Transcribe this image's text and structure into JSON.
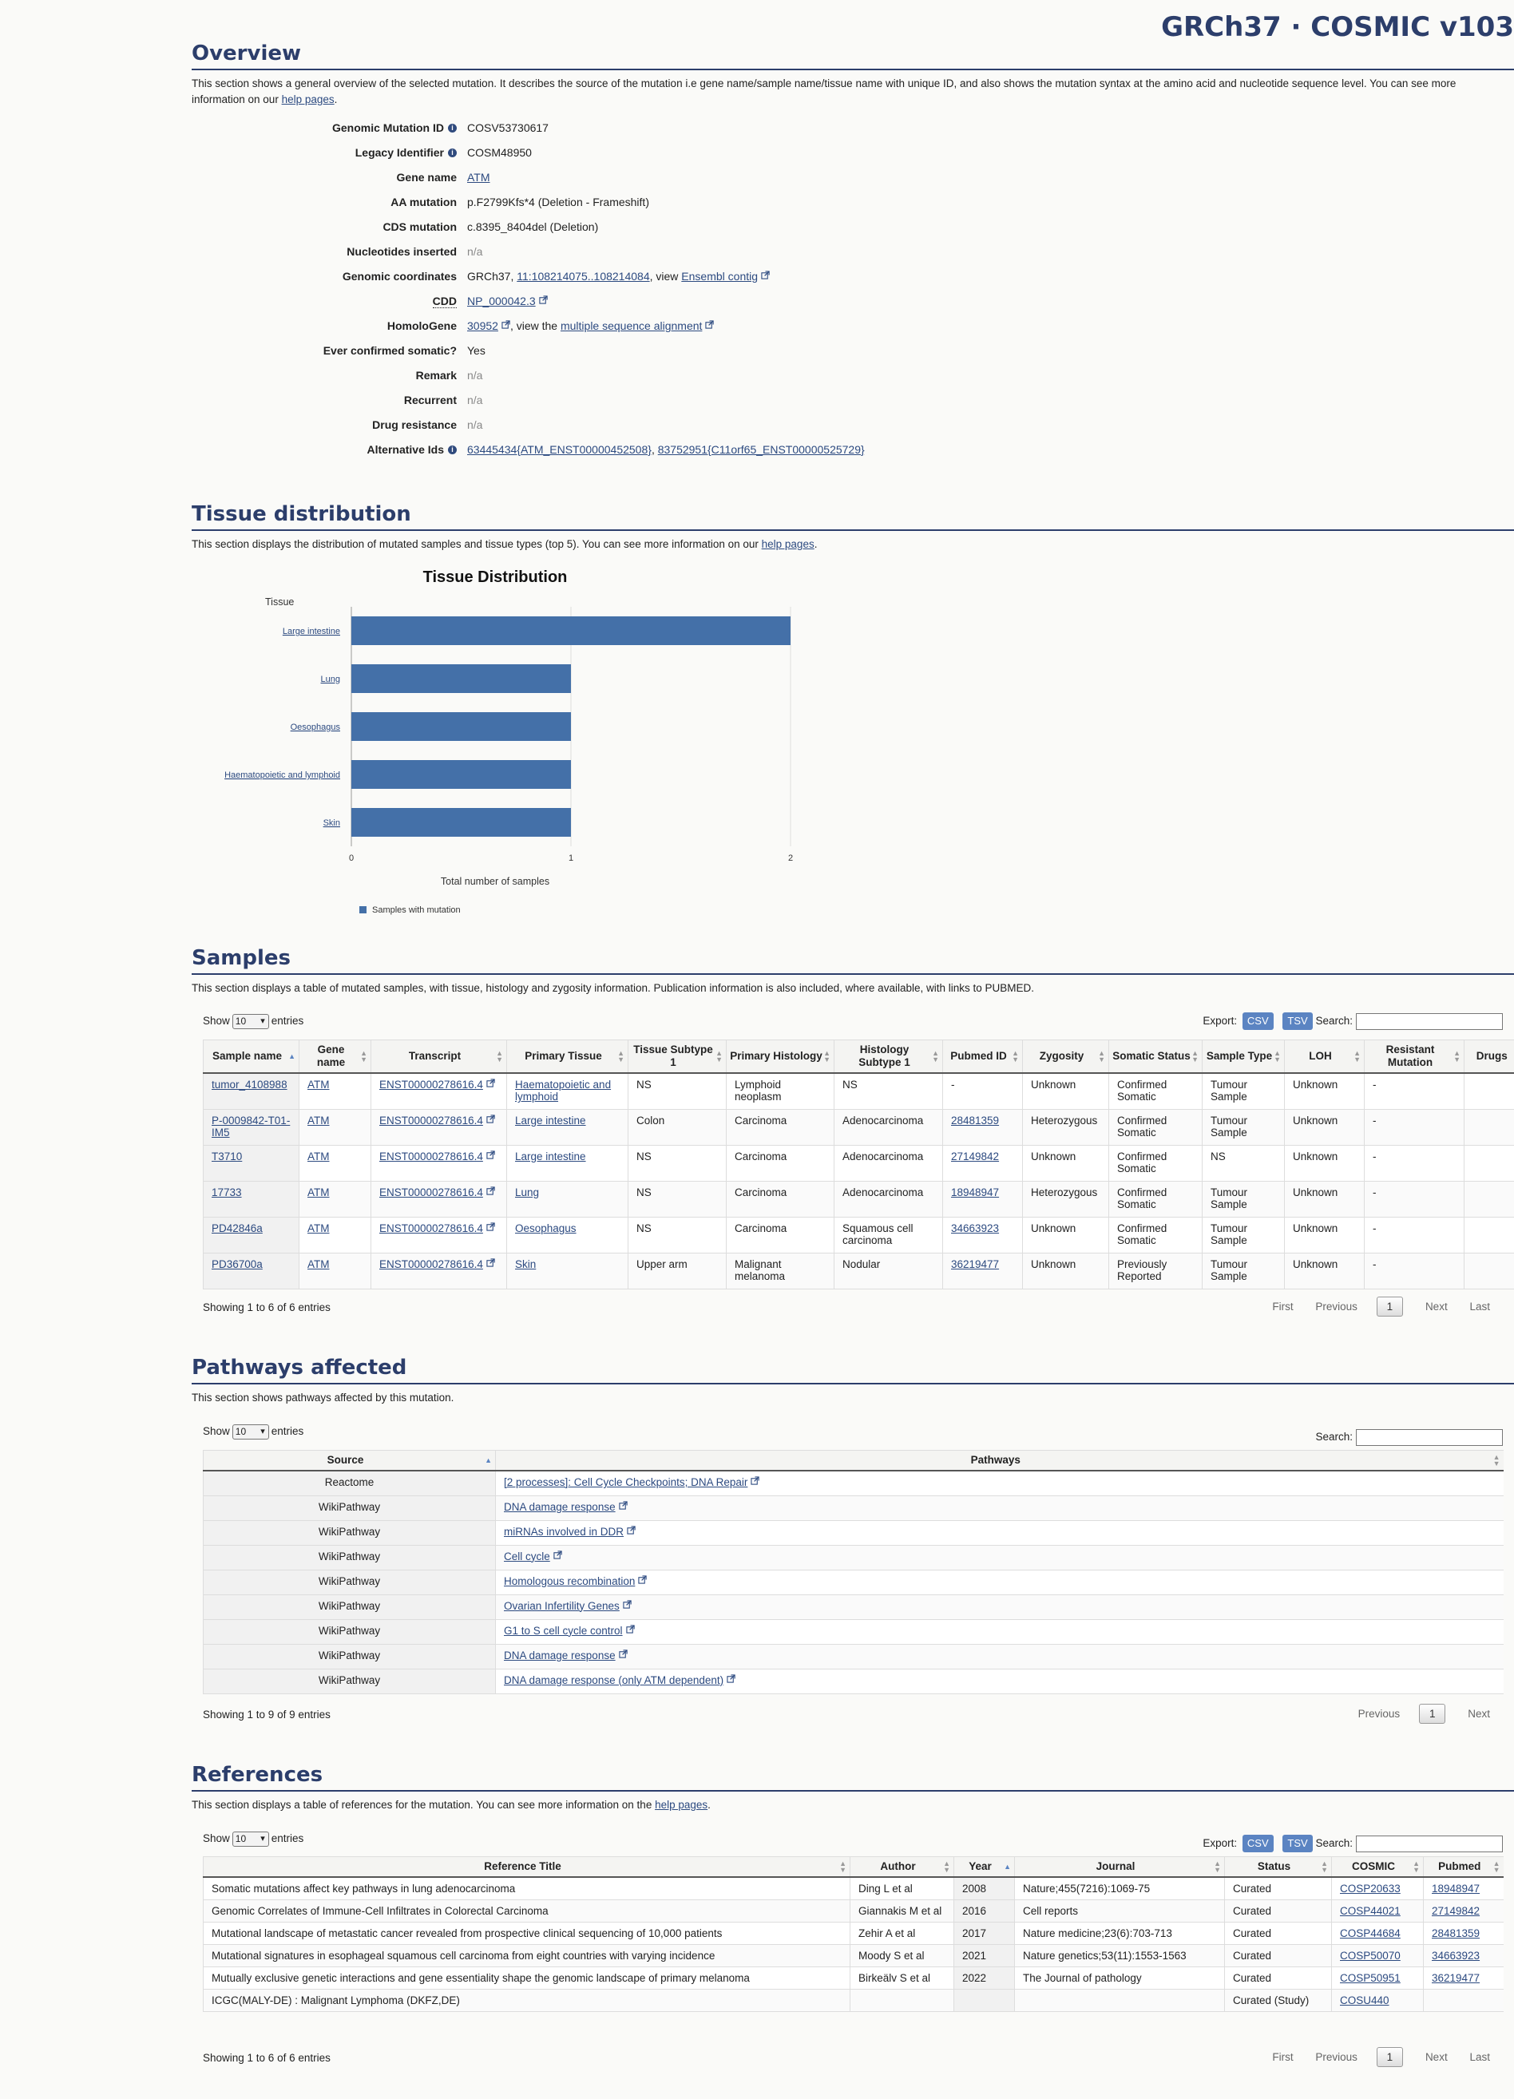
{
  "site_title": "GRCh37 · COSMIC v103",
  "overview": {
    "title": "Overview",
    "desc_before": "This section shows a general overview of the selected mutation. It describes the source of the mutation i.e gene name/sample name/tissue name with unique ID, and also shows the mutation syntax at the amino acid and nucleotide sequence level. You can see more information on our ",
    "help_link": "help pages",
    "desc_after": ".",
    "rows": {
      "genomic_mutation_id": {
        "key": "Genomic Mutation ID",
        "value": "COSV53730617"
      },
      "legacy_identifier": {
        "key": "Legacy Identifier",
        "value": "COSM48950"
      },
      "gene_name": {
        "key": "Gene name",
        "value": "ATM"
      },
      "aa_mutation": {
        "key": "AA mutation",
        "value": "p.F2799Kfs*4 (Deletion - Frameshift)"
      },
      "cds_mutation": {
        "key": "CDS mutation",
        "value": "c.8395_8404del (Deletion)"
      },
      "nucleotides_inserted": {
        "key": "Nucleotides inserted",
        "value": "n/a"
      },
      "genomic_coordinates": {
        "key": "Genomic coordinates",
        "prefix": "GRCh37, ",
        "coord_link": "11:108214075..108214084",
        "mid": ", view ",
        "ensembl_link": "Ensembl contig"
      },
      "cdd": {
        "key": "CDD",
        "value": "NP_000042.3"
      },
      "homologene": {
        "key": "HomoloGene",
        "id_link": "30952",
        "mid": ", view the ",
        "msa_link": "multiple sequence alignment"
      },
      "ever_confirmed_somatic": {
        "key": "Ever confirmed somatic?",
        "value": "Yes"
      },
      "remark": {
        "key": "Remark",
        "value": "n/a"
      },
      "recurrent": {
        "key": "Recurrent",
        "value": "n/a"
      },
      "drug_resistance": {
        "key": "Drug resistance",
        "value": "n/a"
      },
      "alternative_ids": {
        "key": "Alternative Ids",
        "link1": "63445434{ATM_ENST00000452508}",
        "sep": ", ",
        "link2": "83752951{C11orf65_ENST00000525729}"
      }
    }
  },
  "tissue": {
    "title": "Tissue distribution",
    "desc_before": "This section displays the distribution of mutated samples and tissue types (top 5). You can see more information on our ",
    "help_link": "help pages",
    "desc_after": "."
  },
  "chart_data": {
    "type": "bar",
    "orientation": "horizontal",
    "title": "Tissue Distribution",
    "ylabel": "Tissue",
    "xlabel": "Total number of samples",
    "categories": [
      "Large intestine",
      "Lung",
      "Oesophagus",
      "Haematopoietic and lymphoid",
      "Skin"
    ],
    "series": [
      {
        "name": "Samples with mutation",
        "values": [
          2,
          1,
          1,
          1,
          1
        ],
        "color": "#4470a8"
      }
    ],
    "xlim": [
      0,
      2
    ],
    "xticks": [
      "0",
      "1",
      "2"
    ],
    "grid": true,
    "legend_position": "bottom-left"
  },
  "samples": {
    "title": "Samples",
    "desc": "This section displays a table of mutated samples, with tissue, histology and zygosity information. Publication information is also included, where available, with links to PUBMED.",
    "show": "Show",
    "page_size": "10",
    "entries": "entries",
    "export": "Export:",
    "csv": "CSV",
    "tsv": "TSV",
    "search": "Search:",
    "columns": [
      "Sample name",
      "Gene name",
      "Transcript",
      "Primary Tissue",
      "Tissue Subtype 1",
      "Primary Histology",
      "Histology Subtype 1",
      "Pubmed ID",
      "Zygosity",
      "Somatic Status",
      "Sample Type",
      "LOH",
      "Resistant Mutation",
      "Drugs"
    ],
    "rows": [
      [
        "tumor_4108988",
        "ATM",
        "ENST00000278616.4",
        "Haematopoietic and lymphoid",
        "NS",
        "Lymphoid neoplasm",
        "NS",
        "-",
        "Unknown",
        "Confirmed Somatic",
        "Tumour Sample",
        "Unknown",
        "-",
        ""
      ],
      [
        "P-0009842-T01-IM5",
        "ATM",
        "ENST00000278616.4",
        "Large intestine",
        "Colon",
        "Carcinoma",
        "Adenocarcinoma",
        "28481359",
        "Heterozygous",
        "Confirmed Somatic",
        "Tumour Sample",
        "Unknown",
        "-",
        ""
      ],
      [
        "T3710",
        "ATM",
        "ENST00000278616.4",
        "Large intestine",
        "NS",
        "Carcinoma",
        "Adenocarcinoma",
        "27149842",
        "Unknown",
        "Confirmed Somatic",
        "NS",
        "Unknown",
        "-",
        ""
      ],
      [
        "17733",
        "ATM",
        "ENST00000278616.4",
        "Lung",
        "NS",
        "Carcinoma",
        "Adenocarcinoma",
        "18948947",
        "Heterozygous",
        "Confirmed Somatic",
        "Tumour Sample",
        "Unknown",
        "-",
        ""
      ],
      [
        "PD42846a",
        "ATM",
        "ENST00000278616.4",
        "Oesophagus",
        "NS",
        "Carcinoma",
        "Squamous cell carcinoma",
        "34663923",
        "Unknown",
        "Confirmed Somatic",
        "Tumour Sample",
        "Unknown",
        "-",
        ""
      ],
      [
        "PD36700a",
        "ATM",
        "ENST00000278616.4",
        "Skin",
        "Upper arm",
        "Malignant melanoma",
        "Nodular",
        "36219477",
        "Unknown",
        "Previously Reported",
        "Tumour Sample",
        "Unknown",
        "-",
        ""
      ]
    ],
    "info": "Showing 1 to 6 of 6 entries",
    "pager": {
      "first": "First",
      "previous": "Previous",
      "page": "1",
      "next": "Next",
      "last": "Last"
    }
  },
  "pathways": {
    "title": "Pathways affected",
    "desc": "This section shows pathways affected by this mutation.",
    "show": "Show",
    "page_size": "10",
    "entries": "entries",
    "search": "Search:",
    "columns": [
      "Source",
      "Pathways"
    ],
    "rows": [
      [
        "Reactome",
        "[2 processes]: Cell Cycle Checkpoints; DNA Repair"
      ],
      [
        "WikiPathway",
        "DNA damage response"
      ],
      [
        "WikiPathway",
        "miRNAs involved in DDR"
      ],
      [
        "WikiPathway",
        "Cell cycle"
      ],
      [
        "WikiPathway",
        "Homologous recombination"
      ],
      [
        "WikiPathway",
        "Ovarian Infertility Genes"
      ],
      [
        "WikiPathway",
        "G1 to S cell cycle control"
      ],
      [
        "WikiPathway",
        "DNA damage response"
      ],
      [
        "WikiPathway",
        "DNA damage response (only ATM dependent)"
      ]
    ],
    "info": "Showing 1 to 9 of 9 entries",
    "pager": {
      "previous": "Previous",
      "page": "1",
      "next": "Next"
    }
  },
  "references": {
    "title": "References",
    "desc_before": "This section displays a table of references for the mutation. You can see more information on the ",
    "help_link": "help pages",
    "desc_after": ".",
    "show": "Show",
    "page_size": "10",
    "entries": "entries",
    "export": "Export:",
    "csv": "CSV",
    "tsv": "TSV",
    "search": "Search:",
    "columns": [
      "Reference Title",
      "Author",
      "Year",
      "Journal",
      "Status",
      "COSMIC",
      "Pubmed"
    ],
    "rows": [
      [
        "Somatic mutations affect key pathways in lung adenocarcinoma",
        "Ding L et al",
        "2008",
        "Nature;455(7216):1069-75",
        "Curated",
        "COSP20633",
        "18948947"
      ],
      [
        "Genomic Correlates of Immune-Cell Infiltrates in Colorectal Carcinoma",
        "Giannakis M et al",
        "2016",
        "Cell reports",
        "Curated",
        "COSP44021",
        "27149842"
      ],
      [
        "Mutational landscape of metastatic cancer revealed from prospective clinical sequencing of 10,000 patients",
        "Zehir A et al",
        "2017",
        "Nature medicine;23(6):703-713",
        "Curated",
        "COSP44684",
        "28481359"
      ],
      [
        "Mutational signatures in esophageal squamous cell carcinoma from eight countries with varying incidence",
        "Moody S et al",
        "2021",
        "Nature genetics;53(11):1553-1563",
        "Curated",
        "COSP50070",
        "34663923"
      ],
      [
        "Mutually exclusive genetic interactions and gene essentiality shape the genomic landscape of primary melanoma",
        "Birkeälv S et al",
        "2022",
        "The Journal of pathology",
        "Curated",
        "COSP50951",
        "36219477"
      ],
      [
        "ICGC(MALY-DE) : Malignant Lymphoma (DKFZ,DE)",
        "",
        "",
        "",
        "Curated (Study)",
        "COSU440",
        ""
      ]
    ],
    "info": "Showing 1 to 6 of 6 entries",
    "pager": {
      "first": "First",
      "previous": "Previous",
      "page": "1",
      "next": "Next",
      "last": "Last"
    }
  }
}
